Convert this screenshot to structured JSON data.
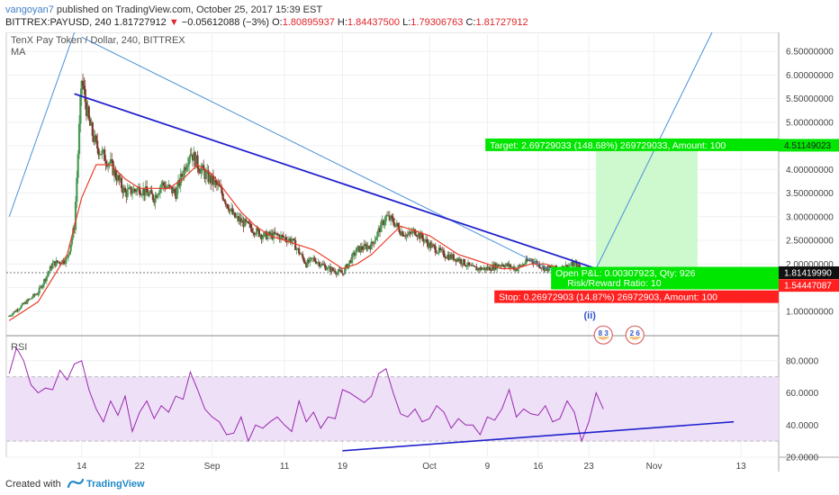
{
  "header": {
    "author": "vangoyan7",
    "published_text": "published on TradingView.com, October 25, 2017 15:39 EST",
    "ticker_line": "BITTREX:PAYUSD, 240",
    "last_price": "1.81727912",
    "change_arrow": "▼",
    "change_text": "−0.05612088 (−3%)",
    "o_label": "O:",
    "o_value": "1.80895937",
    "h_label": "H:",
    "h_value": "1.84437500",
    "l_label": "L:",
    "l_value": "1.79306763",
    "c_label": "C:",
    "c_value": "1.81727912"
  },
  "footer": {
    "created_with": "Created with",
    "brand": "TradingView"
  },
  "colors": {
    "candle_up": "#4a9a55",
    "candle_down": "#7a3b2e",
    "ma": "#e8402a",
    "trend": "#2222cc",
    "channel": "#4a90d9",
    "rsi": "#9c27b0",
    "rsi_band": "#ede0f7",
    "target": "#00e600",
    "stop": "#ff2020"
  },
  "chart_data": [
    {
      "type": "candlestick",
      "title": "TenX Pay Token / Dollar, 240, BITTREX",
      "indicator_label": "MA",
      "y_scale": "linear",
      "ylim": [
        0.5,
        6.9
      ],
      "y_ticks": [
        "1.00000000",
        "1.50000000",
        "2.00000000",
        "2.50000000",
        "3.00000000",
        "3.50000000",
        "4.00000000",
        "4.50000000",
        "5.00000000",
        "5.50000000",
        "6.00000000",
        "6.50000000"
      ],
      "y_tick_values": [
        1.0,
        1.5,
        2.0,
        2.5,
        3.0,
        3.5,
        4.0,
        4.5,
        5.0,
        5.5,
        6.0,
        6.5
      ],
      "x_ticks": [
        "14",
        "22",
        "Sep",
        "11",
        "19",
        "Oct",
        "9",
        "16",
        "23",
        "Nov",
        "13"
      ],
      "x_tick_days": [
        14,
        22,
        32,
        42,
        50,
        62,
        70,
        77,
        84,
        93,
        105
      ],
      "x_tick_note": "days since Aug 0, 2017",
      "price_path_approx": {
        "x": [
          4,
          8,
          10,
          12,
          13,
          14,
          15,
          16,
          18,
          20,
          22,
          24,
          25,
          27,
          29,
          30,
          31,
          33,
          35,
          37,
          39,
          41,
          43,
          45,
          46,
          48,
          50,
          52,
          54,
          55,
          56,
          57,
          58,
          59,
          60,
          62,
          64,
          66,
          68,
          70,
          72,
          74,
          76,
          78,
          80,
          82,
          84,
          85
        ],
        "y": [
          0.9,
          1.4,
          2.0,
          2.1,
          2.8,
          5.9,
          5.0,
          4.5,
          4.1,
          3.5,
          3.6,
          3.4,
          3.7,
          3.5,
          4.4,
          4.1,
          3.9,
          3.6,
          3.0,
          2.8,
          2.6,
          2.6,
          2.5,
          2.0,
          2.1,
          1.9,
          1.8,
          2.3,
          2.4,
          2.7,
          3.0,
          2.9,
          2.7,
          2.6,
          2.7,
          2.4,
          2.2,
          2.1,
          1.9,
          1.9,
          2.0,
          1.9,
          2.1,
          1.9,
          1.9,
          2.0,
          1.75,
          1.82
        ]
      },
      "ma_path_approx": {
        "x": [
          4,
          8,
          10,
          12,
          14,
          16,
          18,
          20,
          22,
          24,
          26,
          28,
          30,
          32,
          34,
          36,
          38,
          40,
          42,
          44,
          46,
          48,
          50,
          52,
          54,
          56,
          58,
          60,
          62,
          64,
          66,
          68,
          70,
          72,
          74,
          76,
          78,
          80,
          82,
          84,
          85
        ],
        "y": [
          0.8,
          1.2,
          1.7,
          2.2,
          3.4,
          4.1,
          4.1,
          3.8,
          3.6,
          3.6,
          3.6,
          3.8,
          4.1,
          3.9,
          3.5,
          3.1,
          2.8,
          2.6,
          2.5,
          2.4,
          2.3,
          2.1,
          1.9,
          2.0,
          2.2,
          2.5,
          2.8,
          2.7,
          2.6,
          2.4,
          2.2,
          2.1,
          2.0,
          1.9,
          1.9,
          2.0,
          2.0,
          1.9,
          1.9,
          1.9,
          1.85
        ]
      },
      "trendline_main": {
        "from": [
          13,
          5.6
        ],
        "to": [
          85,
          1.9
        ]
      },
      "channel_line_upper": {
        "from": [
          4,
          3.0
        ],
        "to": [
          13,
          6.9
        ]
      },
      "channel_line_mid": {
        "from": [
          14,
          6.8
        ],
        "to": [
          83,
          1.55
        ]
      },
      "projection_line": {
        "from": [
          85,
          1.9
        ],
        "to": [
          101,
          6.9
        ]
      },
      "position_tool": {
        "entry": 1.8141999,
        "target_price": 4.51149023,
        "stop_price": 1.54447087,
        "target_label": "Target: 2.69729033 (148.68%) 269729033, Amount: 100",
        "stop_label": "Stop: 0.26972903 (14.87%) 26972903, Amount: 100",
        "open_pl_label": "Open P&L: 0.00307923, Qty: 926",
        "risk_reward_label": "Risk/Reward Ratio: 10",
        "x_range": [
          85,
          99
        ],
        "price_tags": [
          "4.51149023",
          "1.81419990",
          "1.54447087"
        ]
      },
      "wave_label": "(ii)",
      "event_badges": [
        "8 3",
        "2 6"
      ]
    },
    {
      "type": "line",
      "title": "RSI",
      "ylim": [
        20,
        95
      ],
      "y_ticks": [
        "20.0000",
        "40.0000",
        "60.0000",
        "80.0000"
      ],
      "y_tick_values": [
        20,
        40,
        60,
        80
      ],
      "bands": [
        30,
        70
      ],
      "series": [
        {
          "x": [
            4,
            5,
            6,
            7,
            8,
            9,
            10,
            11,
            12,
            13,
            14,
            15,
            16,
            17,
            18,
            19,
            20,
            21,
            22,
            23,
            24,
            25,
            26,
            27,
            28,
            29,
            30,
            31,
            32,
            33,
            34,
            35,
            36,
            37,
            38,
            39,
            40,
            41,
            42,
            43,
            44,
            45,
            46,
            47,
            48,
            49,
            50,
            51,
            52,
            53,
            54,
            55,
            56,
            57,
            58,
            59,
            60,
            61,
            62,
            63,
            64,
            65,
            66,
            67,
            68,
            69,
            70,
            71,
            72,
            73,
            74,
            75,
            76,
            77,
            78,
            79,
            80,
            81,
            82,
            83,
            84,
            85,
            86
          ],
          "y": [
            72,
            88,
            80,
            65,
            60,
            63,
            62,
            74,
            68,
            78,
            80,
            62,
            50,
            42,
            55,
            46,
            58,
            36,
            48,
            55,
            44,
            52,
            48,
            58,
            56,
            73,
            62,
            50,
            45,
            42,
            34,
            35,
            45,
            30,
            40,
            38,
            42,
            45,
            40,
            36,
            55,
            42,
            48,
            38,
            45,
            44,
            62,
            60,
            57,
            54,
            58,
            72,
            75,
            60,
            47,
            45,
            50,
            42,
            44,
            52,
            48,
            38,
            44,
            40,
            40,
            34,
            45,
            43,
            50,
            62,
            45,
            50,
            47,
            46,
            52,
            42,
            44,
            55,
            48,
            30,
            42,
            60,
            50
          ]
        }
      ],
      "trendline": {
        "from": [
          50,
          24
        ],
        "to": [
          104,
          42
        ]
      }
    }
  ]
}
